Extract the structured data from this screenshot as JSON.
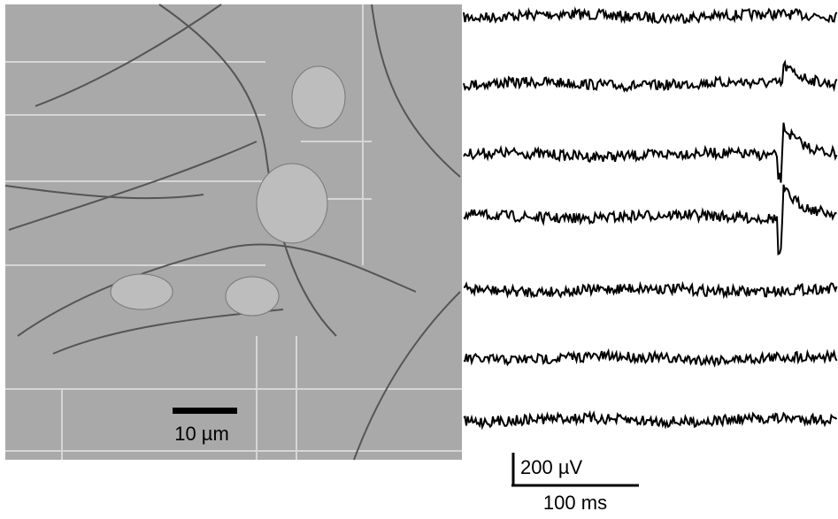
{
  "image": {
    "scale_label": "10 µm"
  },
  "traces": {
    "voltage_scale_label": "200 µV",
    "time_scale_label": "100 ms"
  }
}
